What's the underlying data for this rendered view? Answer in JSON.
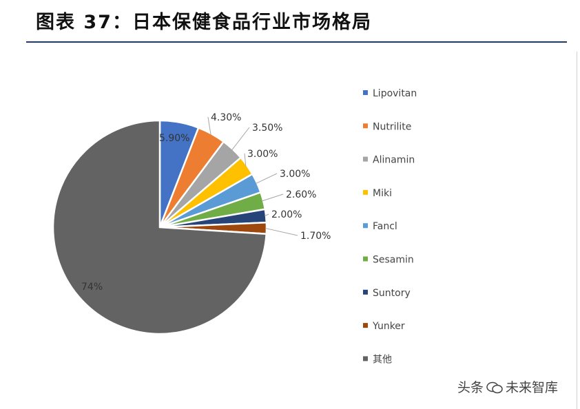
{
  "header": {
    "title": "图表 37：日本保健食品行业市场格局"
  },
  "chart_data": {
    "type": "pie",
    "title": "",
    "slices": [
      {
        "name": "Lipovitan",
        "value": 5.9,
        "label": "5.90%",
        "color": "#4472c4"
      },
      {
        "name": "Nutrilite",
        "value": 4.3,
        "label": "4.30%",
        "color": "#ed7d31"
      },
      {
        "name": "Alinamin",
        "value": 3.5,
        "label": "3.50%",
        "color": "#a5a5a5"
      },
      {
        "name": "Miki",
        "value": 3.0,
        "label": "3.00%",
        "color": "#ffc000"
      },
      {
        "name": "Fancl",
        "value": 3.0,
        "label": "3.00%",
        "color": "#5b9bd5"
      },
      {
        "name": "Sesamin",
        "value": 2.6,
        "label": "2.60%",
        "color": "#70ad47"
      },
      {
        "name": "Suntory",
        "value": 2.0,
        "label": "2.00%",
        "color": "#264478"
      },
      {
        "name": "Yunker",
        "value": 1.7,
        "label": "1.70%",
        "color": "#9e480e"
      },
      {
        "name": "其他",
        "value": 74,
        "label": "74%",
        "color": "#636363"
      }
    ],
    "legend_position": "right"
  },
  "watermark": {
    "prefix": "头条",
    "suffix": "未来智库"
  }
}
